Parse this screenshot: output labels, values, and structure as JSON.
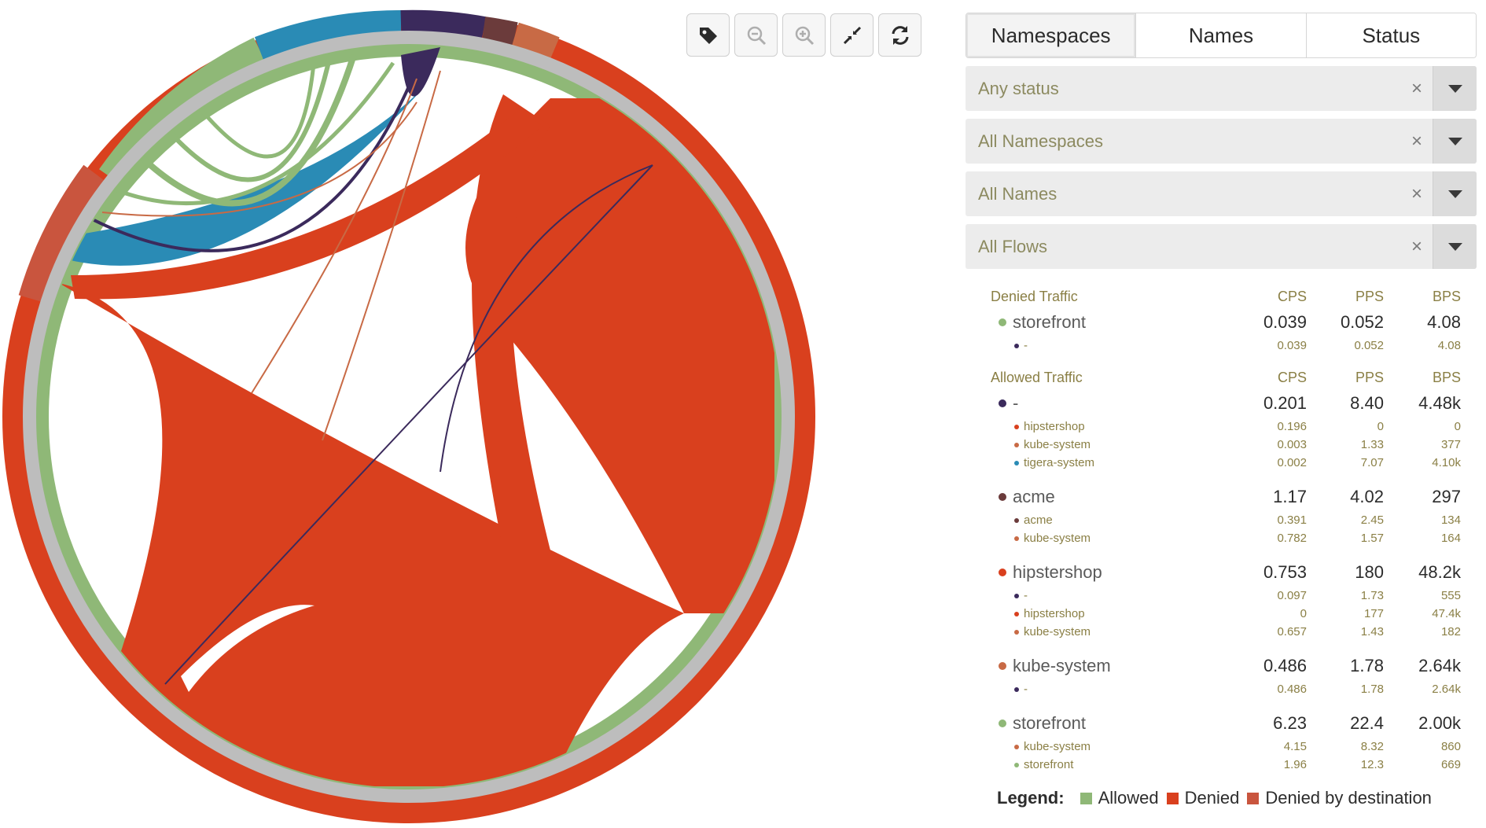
{
  "toolbar": {
    "tags_icon": "tag-icon",
    "zoom_out_icon": "zoom-out-icon",
    "zoom_in_icon": "zoom-in-icon",
    "collapse_icon": "collapse-icon",
    "refresh_icon": "refresh-icon"
  },
  "tabs": [
    {
      "label": "Namespaces",
      "active": true
    },
    {
      "label": "Names",
      "active": false
    },
    {
      "label": "Status",
      "active": false
    }
  ],
  "filters": [
    {
      "value": "Any status"
    },
    {
      "value": "All Namespaces"
    },
    {
      "value": "All Names"
    },
    {
      "value": "All Flows"
    }
  ],
  "filter_clear": "×",
  "columns": {
    "cps": "CPS",
    "pps": "PPS",
    "bps": "BPS"
  },
  "denied": {
    "title": "Denied Traffic",
    "groups": [
      {
        "name": "storefront",
        "color": "#8fb877",
        "cps": "0.039",
        "pps": "0.052",
        "bps": "4.08",
        "rows": [
          {
            "name": "-",
            "color": "#3b2a5c",
            "cps": "0.039",
            "pps": "0.052",
            "bps": "4.08"
          }
        ]
      }
    ]
  },
  "allowed": {
    "title": "Allowed Traffic",
    "groups": [
      {
        "name": "-",
        "color": "#3b2a5c",
        "cps": "0.201",
        "pps": "8.40",
        "bps": "4.48k",
        "rows": [
          {
            "name": "hipstershop",
            "color": "#d9401e",
            "cps": "0.196",
            "pps": "0",
            "bps": "0"
          },
          {
            "name": "kube-system",
            "color": "#c86a45",
            "cps": "0.003",
            "pps": "1.33",
            "bps": "377"
          },
          {
            "name": "tigera-system",
            "color": "#2a8bb5",
            "cps": "0.002",
            "pps": "7.07",
            "bps": "4.10k"
          }
        ]
      },
      {
        "name": "acme",
        "color": "#6b3b3b",
        "cps": "1.17",
        "pps": "4.02",
        "bps": "297",
        "rows": [
          {
            "name": "acme",
            "color": "#6b3b3b",
            "cps": "0.391",
            "pps": "2.45",
            "bps": "134"
          },
          {
            "name": "kube-system",
            "color": "#c86a45",
            "cps": "0.782",
            "pps": "1.57",
            "bps": "164"
          }
        ]
      },
      {
        "name": "hipstershop",
        "color": "#d9401e",
        "cps": "0.753",
        "pps": "180",
        "bps": "48.2k",
        "rows": [
          {
            "name": "-",
            "color": "#3b2a5c",
            "cps": "0.097",
            "pps": "1.73",
            "bps": "555"
          },
          {
            "name": "hipstershop",
            "color": "#d9401e",
            "cps": "0",
            "pps": "177",
            "bps": "47.4k"
          },
          {
            "name": "kube-system",
            "color": "#c86a45",
            "cps": "0.657",
            "pps": "1.43",
            "bps": "182"
          }
        ]
      },
      {
        "name": "kube-system",
        "color": "#c86a45",
        "cps": "0.486",
        "pps": "1.78",
        "bps": "2.64k",
        "rows": [
          {
            "name": "-",
            "color": "#3b2a5c",
            "cps": "0.486",
            "pps": "1.78",
            "bps": "2.64k"
          }
        ]
      },
      {
        "name": "storefront",
        "color": "#8fb877",
        "cps": "6.23",
        "pps": "22.4",
        "bps": "2.00k",
        "rows": [
          {
            "name": "kube-system",
            "color": "#c86a45",
            "cps": "4.15",
            "pps": "8.32",
            "bps": "860"
          },
          {
            "name": "storefront",
            "color": "#8fb877",
            "cps": "1.96",
            "pps": "12.3",
            "bps": "669"
          }
        ]
      }
    ]
  },
  "legend": {
    "title": "Legend:",
    "items": [
      {
        "label": "Allowed",
        "color": "#8fb877"
      },
      {
        "label": "Denied",
        "color": "#d9401e"
      },
      {
        "label": "Denied by destination",
        "color": "#c9553e"
      }
    ]
  }
}
